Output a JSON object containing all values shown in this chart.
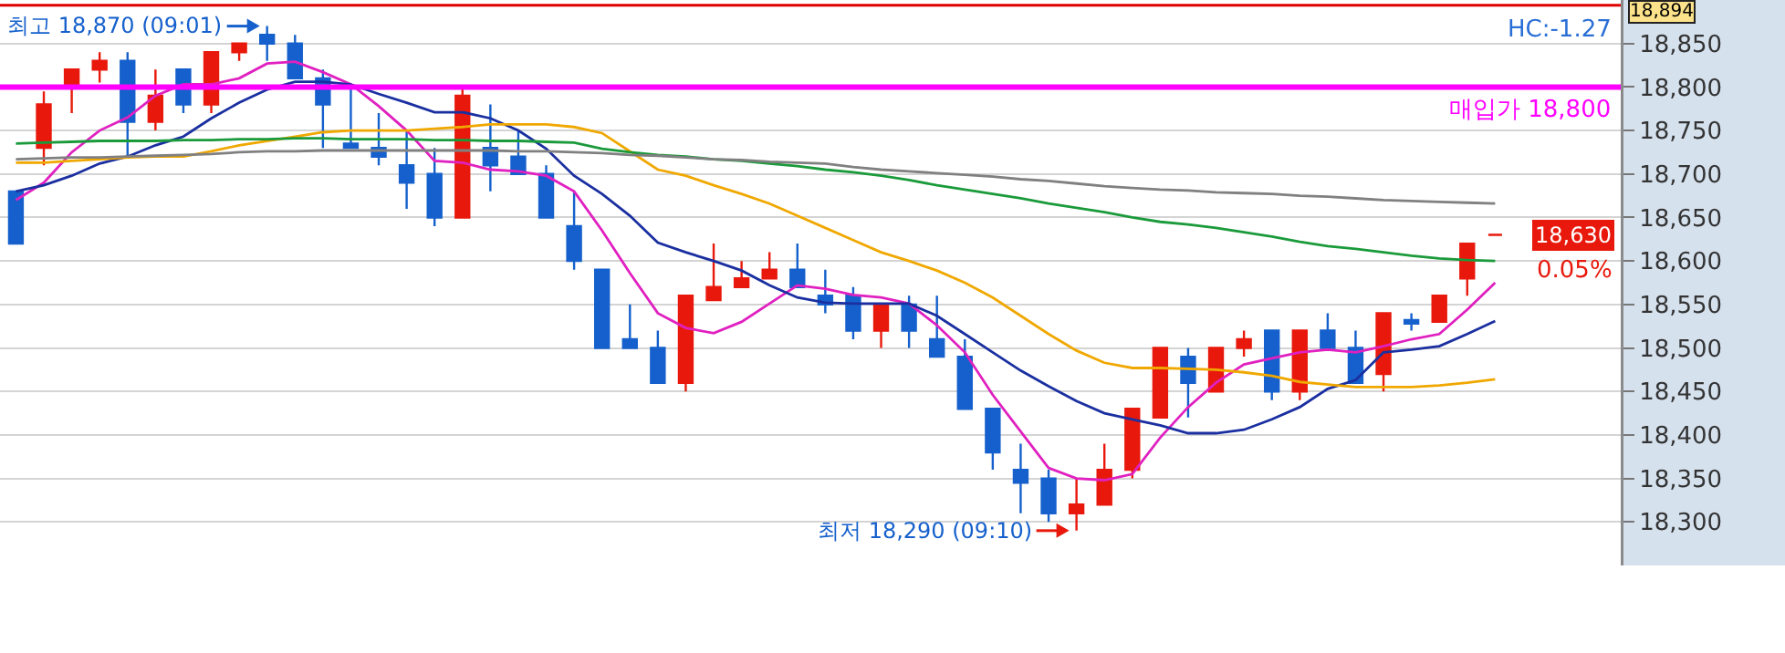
{
  "chart_data": {
    "type": "candlestick",
    "categories": [
      null,
      null,
      null,
      null,
      null,
      null,
      null,
      null,
      null,
      null,
      null,
      null,
      null,
      null,
      null,
      null,
      null,
      null,
      null,
      null,
      null,
      null,
      null,
      null,
      null,
      null,
      null,
      null,
      null,
      null,
      null,
      null,
      null,
      null,
      null,
      null,
      null,
      null,
      null,
      null,
      null,
      null,
      null,
      null,
      null,
      null,
      null,
      null,
      null,
      null,
      null,
      null,
      null,
      null
    ],
    "ohlc": [
      [
        18680,
        18680,
        18620,
        18620
      ],
      [
        18730,
        18795,
        18710,
        18780
      ],
      [
        18800,
        18820,
        18770,
        18820
      ],
      [
        18820,
        18840,
        18805,
        18830
      ],
      [
        18830,
        18840,
        18720,
        18760
      ],
      [
        18760,
        18820,
        18750,
        18790
      ],
      [
        18820,
        18820,
        18770,
        18780
      ],
      [
        18780,
        18840,
        18770,
        18840
      ],
      [
        18840,
        18850,
        18830,
        18850
      ],
      [
        18860,
        18870,
        18830,
        18850
      ],
      [
        18850,
        18860,
        18810,
        18810
      ],
      [
        18810,
        18820,
        18730,
        18780
      ],
      [
        18735,
        18800,
        18730,
        18730
      ],
      [
        18730,
        18770,
        18710,
        18720
      ],
      [
        18710,
        18750,
        18660,
        18690
      ],
      [
        18700,
        18730,
        18640,
        18650
      ],
      [
        18650,
        18800,
        18650,
        18790
      ],
      [
        18730,
        18780,
        18680,
        18710
      ],
      [
        18720,
        18750,
        18700,
        18700
      ],
      [
        18700,
        18710,
        18650,
        18650
      ],
      [
        18640,
        18680,
        18590,
        18600
      ],
      [
        18590,
        18590,
        18500,
        18500
      ],
      [
        18510,
        18550,
        18500,
        18500
      ],
      [
        18500,
        18520,
        18460,
        18460
      ],
      [
        18460,
        18560,
        18450,
        18560
      ],
      [
        18555,
        18620,
        18555,
        18570
      ],
      [
        18570,
        18600,
        18570,
        18580
      ],
      [
        18580,
        18610,
        18580,
        18590
      ],
      [
        18590,
        18620,
        18570,
        18570
      ],
      [
        18560,
        18590,
        18540,
        18550
      ],
      [
        18560,
        18570,
        18510,
        18520
      ],
      [
        18520,
        18550,
        18500,
        18550
      ],
      [
        18550,
        18560,
        18500,
        18520
      ],
      [
        18510,
        18560,
        18490,
        18490
      ],
      [
        18490,
        18510,
        18430,
        18430
      ],
      [
        18430,
        18430,
        18360,
        18380
      ],
      [
        18360,
        18390,
        18310,
        18345
      ],
      [
        18350,
        18360,
        18300,
        18310
      ],
      [
        18310,
        18350,
        18290,
        18320
      ],
      [
        18320,
        18390,
        18320,
        18360
      ],
      [
        18360,
        18430,
        18350,
        18430
      ],
      [
        18420,
        18500,
        18420,
        18500
      ],
      [
        18490,
        18500,
        18420,
        18460
      ],
      [
        18450,
        18500,
        18450,
        18500
      ],
      [
        18500,
        18520,
        18490,
        18510
      ],
      [
        18520,
        18520,
        18440,
        18450
      ],
      [
        18450,
        18520,
        18440,
        18520
      ],
      [
        18520,
        18540,
        18500,
        18500
      ],
      [
        18500,
        18520,
        18460,
        18460
      ],
      [
        18470,
        18540,
        18450,
        18540
      ],
      [
        18532,
        18540,
        18520,
        18528
      ],
      [
        18530,
        18560,
        18530,
        18560
      ],
      [
        18580,
        18620,
        18560,
        18620
      ],
      [
        18630,
        18630,
        18630,
        18630
      ]
    ],
    "colors": [
      "#1560cc",
      "#e8190c",
      "#e8190c",
      "#e8190c",
      "#1560cc",
      "#e8190c",
      "#1560cc",
      "#e8190c",
      "#e8190c",
      "#1560cc",
      "#1560cc",
      "#1560cc",
      "#1560cc",
      "#1560cc",
      "#1560cc",
      "#1560cc",
      "#e8190c",
      "#1560cc",
      "#1560cc",
      "#1560cc",
      "#1560cc",
      "#1560cc",
      "#1560cc",
      "#1560cc",
      "#e8190c",
      "#e8190c",
      "#e8190c",
      "#e8190c",
      "#1560cc",
      "#1560cc",
      "#1560cc",
      "#e8190c",
      "#1560cc",
      "#1560cc",
      "#1560cc",
      "#1560cc",
      "#1560cc",
      "#1560cc",
      "#e8190c",
      "#e8190c",
      "#e8190c",
      "#e8190c",
      "#1560cc",
      "#e8190c",
      "#e8190c",
      "#1560cc",
      "#e8190c",
      "#1560cc",
      "#1560cc",
      "#e8190c",
      "#1560cc",
      "#e8190c",
      "#e8190c",
      "#e8190c"
    ],
    "series": [
      {
        "type": "line",
        "color": "#e020c0",
        "values": [
          18670,
          18690,
          18725,
          18750,
          18765,
          18790,
          18803,
          18803,
          18810,
          18827,
          18829,
          18817,
          18803,
          18778,
          18750,
          18715,
          18713,
          18705,
          18703,
          18698,
          18680,
          18635,
          18586,
          18540,
          18523,
          18517,
          18530,
          18551,
          18572,
          18568,
          18561,
          18558,
          18551,
          18526,
          18495,
          18446,
          18404,
          18362,
          18350,
          18348,
          18355,
          18397,
          18432,
          18460,
          18481,
          18488,
          18495,
          18498,
          18495,
          18502,
          18510,
          18516,
          18544,
          18575
        ]
      },
      {
        "type": "line",
        "color": "#1a2fa0",
        "values": [
          18680,
          18687,
          18698,
          18712,
          18720,
          18733,
          18743,
          18764,
          18782,
          18797,
          18806,
          18806,
          18803,
          18792,
          18782,
          18771,
          18771,
          18764,
          18750,
          18729,
          18698,
          18677,
          18652,
          18621,
          18610,
          18600,
          18589,
          18572,
          18558,
          18552,
          18551,
          18551,
          18551,
          18537,
          18516,
          18495,
          18474,
          18456,
          18439,
          18425,
          18418,
          18411,
          18402,
          18402,
          18406,
          18418,
          18432,
          18453,
          18463,
          18495,
          18498,
          18502,
          18516,
          18531
        ]
      },
      {
        "type": "line",
        "color": "#f0a800",
        "values": [
          18713,
          18713,
          18715,
          18717,
          18719,
          18720,
          18720,
          18726,
          18733,
          18738,
          18743,
          18748,
          18750,
          18750,
          18750,
          18752,
          18754,
          18757,
          18757,
          18757,
          18754,
          18747,
          18726,
          18705,
          18698,
          18687,
          18677,
          18666,
          18652,
          18638,
          18624,
          18610,
          18600,
          18589,
          18575,
          18558,
          18537,
          18516,
          18497,
          18483,
          18477,
          18477,
          18476,
          18475,
          18472,
          18468,
          18461,
          18458,
          18455,
          18455,
          18455,
          18457,
          18460,
          18464
        ]
      },
      {
        "type": "line",
        "color": "#1a9a3a",
        "values": [
          18735,
          18736,
          18737,
          18738,
          18738,
          18738,
          18739,
          18739,
          18740,
          18740,
          18741,
          18741,
          18740,
          18740,
          18740,
          18739,
          18739,
          18738,
          18738,
          18737,
          18736,
          18729,
          18725,
          18722,
          18720,
          18717,
          18715,
          18712,
          18709,
          18705,
          18702,
          18698,
          18693,
          18687,
          18682,
          18677,
          18672,
          18666,
          18661,
          18656,
          18650,
          18645,
          18642,
          18638,
          18633,
          18628,
          18622,
          18617,
          18614,
          18610,
          18606,
          18603,
          18601,
          18600
        ]
      },
      {
        "type": "line",
        "color": "#808080",
        "values": [
          18717,
          18718,
          18719,
          18719,
          18720,
          18721,
          18722,
          18723,
          18725,
          18726,
          18726,
          18727,
          18727,
          18727,
          18727,
          18727,
          18727,
          18727,
          18726,
          18726,
          18725,
          18724,
          18722,
          18721,
          18719,
          18717,
          18716,
          18714,
          18713,
          18712,
          18708,
          18705,
          18703,
          18701,
          18699,
          18697,
          18694,
          18692,
          18689,
          18686,
          18684,
          18682,
          18681,
          18679,
          18678,
          18677,
          18675,
          18674,
          18672,
          18670,
          18669,
          18668,
          18667,
          18666
        ]
      }
    ],
    "ylim": [
      18250,
      18900
    ],
    "yticks": [
      {
        "value": 18300,
        "label": "18,300"
      },
      {
        "value": 18350,
        "label": "18,350"
      },
      {
        "value": 18400,
        "label": "18,400"
      },
      {
        "value": 18450,
        "label": "18,450"
      },
      {
        "value": 18500,
        "label": "18,500"
      },
      {
        "value": 18550,
        "label": "18,550"
      },
      {
        "value": 18600,
        "label": "18,600"
      },
      {
        "value": 18650,
        "label": "18,650"
      },
      {
        "value": 18700,
        "label": "18,700"
      },
      {
        "value": 18750,
        "label": "18,750"
      },
      {
        "value": 18800,
        "label": "18,800"
      },
      {
        "value": 18850,
        "label": "18,850"
      }
    ],
    "ref_lines": [
      {
        "axis": "y",
        "value": 18800,
        "label": "매입가 18,800",
        "color": "#ff00ff"
      },
      {
        "axis": "y",
        "value": 18894,
        "label": "18,894",
        "color": "#e00000"
      }
    ],
    "annotations": [
      "최고 18,870 (09:01)",
      "최저 18,290 (09:10)",
      "HC:-1.27",
      "18,630",
      "0.05%"
    ],
    "grid": "y",
    "tick_labels": "y"
  }
}
